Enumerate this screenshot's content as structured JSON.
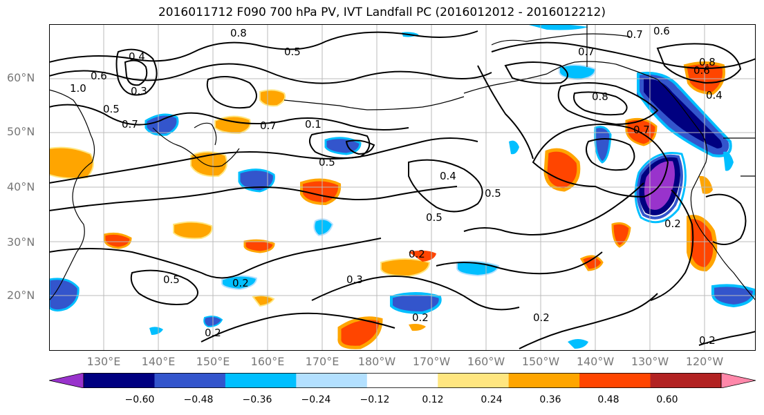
{
  "title": "2016011712 F090 700 hPa PV, IVT Landfall PC (2016012012 - 2016012212)",
  "lat_labels": [
    "60°N",
    "50°N",
    "40°N",
    "30°N",
    "20°N"
  ],
  "lon_labels": [
    "130°E",
    "140°E",
    "150°E",
    "160°E",
    "170°E",
    "180°W",
    "170°W",
    "160°W",
    "150°W",
    "140°W",
    "130°W",
    "120°W"
  ],
  "contour_labels": [
    "0.4",
    "0.3",
    "0.5",
    "0.6",
    "0.8",
    "1.0",
    "0.7",
    "0.5",
    "0.7",
    "0.1",
    "0.5",
    "0.4",
    "0.5",
    "0.5",
    "0.2",
    "0.3",
    "0.2",
    "0.5",
    "0.2",
    "0.2",
    "0.2",
    "0.8",
    "0.6",
    "0.6",
    "0.4",
    "0.8",
    "0.7",
    "0.2",
    "0.2",
    "0.7",
    "0.7"
  ],
  "colorbar": {
    "ticks": [
      "−0.60",
      "−0.48",
      "−0.36",
      "−0.24",
      "−0.12",
      "0.12",
      "0.24",
      "0.36",
      "0.48",
      "0.60"
    ],
    "colors": [
      "#9933cc",
      "#000080",
      "#3355cc",
      "#00bfff",
      "#b3e0ff",
      "#ffffff",
      "#ffe680",
      "#ffa500",
      "#ff4500",
      "#b22222",
      "#ff88aa"
    ]
  },
  "palette": {
    "purple": "#9933cc",
    "navy": "#000080",
    "royal": "#3355cc",
    "sky": "#00bfff",
    "pale_blue": "#b3e0ff",
    "yellow": "#ffe680",
    "orange": "#ffa500",
    "red": "#ff4500",
    "dark_red": "#b22222",
    "pink": "#ff88aa"
  }
}
